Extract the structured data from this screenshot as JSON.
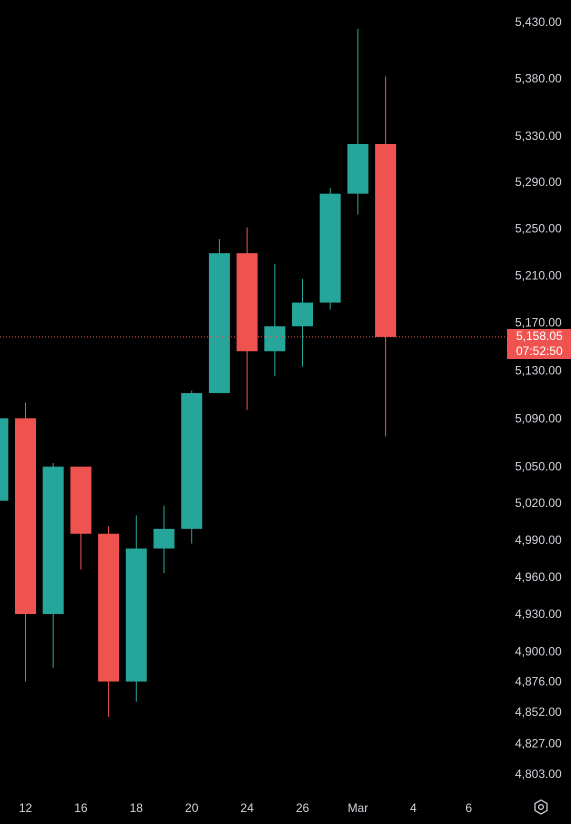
{
  "chart_data": {
    "type": "candlestick",
    "colors": {
      "up": "#26a69a",
      "down": "#ef5350",
      "background": "#000000",
      "axis_text": "#d1d4dc",
      "price_line": "#ef5350"
    },
    "y_axis": {
      "position": "right",
      "tick_labels": [
        "5,430.00",
        "5,380.00",
        "5,330.00",
        "5,290.00",
        "5,250.00",
        "5,210.00",
        "5,170.00",
        "5,130.00",
        "5,090.00",
        "5,050.00",
        "5,020.00",
        "4,990.00",
        "4,960.00",
        "4,930.00",
        "4,900.00",
        "4,876.00",
        "4,852.00",
        "4,827.00",
        "4,803.00"
      ],
      "tick_values": [
        5430,
        5380,
        5330,
        5290,
        5250,
        5210,
        5170,
        5130,
        5090,
        5050,
        5020,
        4990,
        4960,
        4930,
        4900,
        4876,
        4852,
        4827,
        4803
      ],
      "ylim": [
        4790,
        5450
      ],
      "scale": "log"
    },
    "x_axis": {
      "tick_labels": [
        "12",
        "16",
        "18",
        "20",
        "24",
        "26",
        "Mar",
        "4",
        "6"
      ],
      "tick_slots": [
        0,
        2,
        4,
        6,
        8,
        10,
        12,
        14,
        16
      ]
    },
    "candles": [
      {
        "slot": -1,
        "open": 5022,
        "high": 5090,
        "low": 5022,
        "close": 5090
      },
      {
        "slot": 0,
        "open": 5090,
        "high": 5103,
        "low": 4876,
        "close": 4930
      },
      {
        "slot": 1,
        "open": 4930,
        "high": 5053,
        "low": 4887,
        "close": 5050
      },
      {
        "slot": 2,
        "open": 5050,
        "high": 5050,
        "low": 4966,
        "close": 4995
      },
      {
        "slot": 3,
        "open": 4995,
        "high": 5001,
        "low": 4848,
        "close": 4876
      },
      {
        "slot": 4,
        "open": 4876,
        "high": 5010,
        "low": 4860,
        "close": 4983
      },
      {
        "slot": 5,
        "open": 4983,
        "high": 5018,
        "low": 4963,
        "close": 4999
      },
      {
        "slot": 6,
        "open": 4999,
        "high": 5113,
        "low": 4987,
        "close": 5111
      },
      {
        "slot": 7,
        "open": 5111,
        "high": 5241,
        "low": 5111,
        "close": 5229
      },
      {
        "slot": 8,
        "open": 5229,
        "high": 5251,
        "low": 5097,
        "close": 5146
      },
      {
        "slot": 9,
        "open": 5146,
        "high": 5220,
        "low": 5125,
        "close": 5167
      },
      {
        "slot": 10,
        "open": 5167,
        "high": 5207,
        "low": 5133,
        "close": 5187
      },
      {
        "slot": 11,
        "open": 5187,
        "high": 5285,
        "low": 5181,
        "close": 5280
      },
      {
        "slot": 12,
        "open": 5280,
        "high": 5424,
        "low": 5262,
        "close": 5323
      },
      {
        "slot": 13,
        "open": 5323,
        "high": 5382,
        "low": 5075,
        "close": 5158.05
      }
    ],
    "last_price": {
      "value": 5158.05,
      "label": "5,158.05",
      "countdown": "07:52:50"
    }
  }
}
